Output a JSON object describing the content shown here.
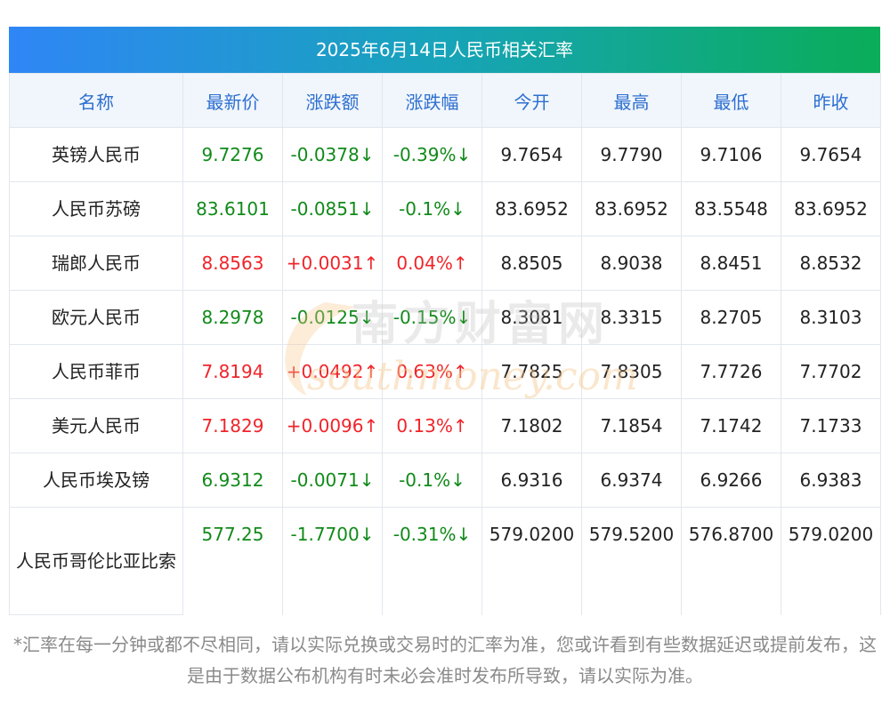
{
  "title": "2025年6月14日人民币相关汇率",
  "headers": [
    "名称",
    "最新价",
    "涨跌额",
    "涨跌幅",
    "今开",
    "最高",
    "最低",
    "昨收"
  ],
  "rows": [
    {
      "name": "英镑人民币",
      "latest": "9.7276",
      "change": "-0.0378↓",
      "pct": "-0.39%↓",
      "open": "9.7654",
      "high": "9.7790",
      "low": "9.7106",
      "prev": "9.7654",
      "trend": "down"
    },
    {
      "name": "人民币苏磅",
      "latest": "83.6101",
      "change": "-0.0851↓",
      "pct": "-0.1%↓",
      "open": "83.6952",
      "high": "83.6952",
      "low": "83.5548",
      "prev": "83.6952",
      "trend": "down"
    },
    {
      "name": "瑞郎人民币",
      "latest": "8.8563",
      "change": "+0.0031↑",
      "pct": "0.04%↑",
      "open": "8.8505",
      "high": "8.9038",
      "low": "8.8451",
      "prev": "8.8532",
      "trend": "up"
    },
    {
      "name": "欧元人民币",
      "latest": "8.2978",
      "change": "-0.0125↓",
      "pct": "-0.15%↓",
      "open": "8.3081",
      "high": "8.3315",
      "low": "8.2705",
      "prev": "8.3103",
      "trend": "down"
    },
    {
      "name": "人民币菲币",
      "latest": "7.8194",
      "change": "+0.0492↑",
      "pct": "0.63%↑",
      "open": "7.7825",
      "high": "7.8305",
      "low": "7.7726",
      "prev": "7.7702",
      "trend": "up"
    },
    {
      "name": "美元人民币",
      "latest": "7.1829",
      "change": "+0.0096↑",
      "pct": "0.13%↑",
      "open": "7.1802",
      "high": "7.1854",
      "low": "7.1742",
      "prev": "7.1733",
      "trend": "up"
    },
    {
      "name": "人民币埃及镑",
      "latest": "6.9312",
      "change": "-0.0071↓",
      "pct": "-0.1%↓",
      "open": "6.9316",
      "high": "6.9374",
      "low": "6.9266",
      "prev": "6.9383",
      "trend": "down"
    },
    {
      "name": "人民币哥伦比亚比索",
      "latest": "577.25",
      "change": "-1.7700↓",
      "pct": "-0.31%↓",
      "open": "579.0200",
      "high": "579.5200",
      "low": "576.8700",
      "prev": "579.0200",
      "trend": "down"
    }
  ],
  "note": "*汇率在每一分钟或都不尽相同，请以实际兑换或交易时的汇率为准，您或许看到有些数据延迟或提前发布，这是由于数据公布机构有时未必会准时发布所导致，请以实际为准。",
  "watermark": {
    "cn": "南方财富网",
    "en": "southmoney.com"
  },
  "colors": {
    "up": "#f0242a",
    "down": "#118a1a",
    "header_text": "#2d6fd0"
  }
}
